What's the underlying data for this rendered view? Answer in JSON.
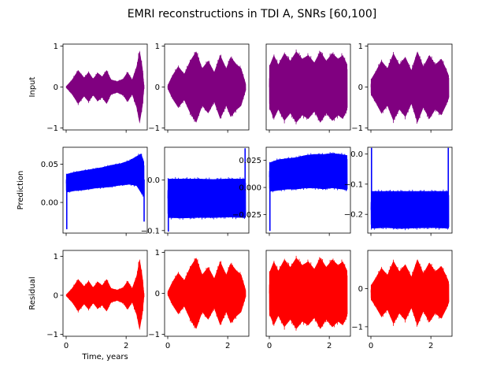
{
  "figure": {
    "title": "EMRI reconstructions in TDI A, SNRs [60,100]"
  },
  "chart_data": [
    {
      "type": "area",
      "row": 0,
      "col": 0,
      "ylabel": "Input",
      "xlabel": "",
      "color": "#800080",
      "x_range": [
        0,
        2.6
      ],
      "ylim": [
        -1.05,
        1.05
      ],
      "x_ticks": [
        0,
        2
      ],
      "x_tick_labels": false,
      "y_ticks": [
        -1,
        0,
        1
      ],
      "y_tick_labels": [
        "−1",
        "0",
        "1"
      ],
      "envelope_x": [
        0,
        0.2,
        0.4,
        0.6,
        0.75,
        0.9,
        1.05,
        1.2,
        1.35,
        1.5,
        1.7,
        1.9,
        2.05,
        2.2,
        2.35,
        2.45,
        2.55,
        2.6
      ],
      "envelope_upper": [
        0.02,
        0.2,
        0.45,
        0.25,
        0.4,
        0.22,
        0.38,
        0.28,
        0.45,
        0.2,
        0.15,
        0.22,
        0.4,
        0.2,
        0.55,
        0.98,
        0.5,
        0.05
      ],
      "envelope_lower": [
        -0.02,
        -0.2,
        -0.45,
        -0.25,
        -0.4,
        -0.22,
        -0.38,
        -0.28,
        -0.45,
        -0.2,
        -0.15,
        -0.22,
        -0.4,
        -0.2,
        -0.55,
        -0.98,
        -0.5,
        -0.05
      ]
    },
    {
      "type": "area",
      "row": 0,
      "col": 1,
      "ylabel": "",
      "xlabel": "",
      "color": "#800080",
      "x_range": [
        0,
        2.6
      ],
      "ylim": [
        -1.05,
        1.05
      ],
      "x_ticks": [
        0,
        2
      ],
      "x_tick_labels": false,
      "y_ticks": [
        -1,
        0,
        1
      ],
      "y_tick_labels": [
        "−1",
        "0",
        "1"
      ],
      "envelope_x": [
        0,
        0.15,
        0.35,
        0.55,
        0.75,
        0.95,
        1.15,
        1.35,
        1.55,
        1.75,
        1.95,
        2.1,
        2.3,
        2.45,
        2.6
      ],
      "envelope_upper": [
        0.05,
        0.3,
        0.55,
        0.35,
        0.7,
        0.95,
        0.5,
        0.7,
        0.4,
        0.85,
        0.5,
        0.8,
        0.6,
        0.5,
        0.1
      ],
      "envelope_lower": [
        -0.05,
        -0.3,
        -0.55,
        -0.35,
        -0.7,
        -0.95,
        -0.5,
        -0.7,
        -0.4,
        -0.85,
        -0.5,
        -0.8,
        -0.6,
        -0.5,
        -0.1
      ]
    },
    {
      "type": "area",
      "row": 0,
      "col": 2,
      "ylabel": "",
      "xlabel": "",
      "color": "#800080",
      "x_range": [
        0,
        2.6
      ],
      "ylim": [
        -1.05,
        1.05
      ],
      "x_ticks": [
        0,
        2
      ],
      "x_tick_labels": false,
      "y_ticks": [],
      "y_tick_labels": [],
      "envelope_x": [
        0,
        0.15,
        0.3,
        0.5,
        0.7,
        0.9,
        1.1,
        1.3,
        1.5,
        1.7,
        1.9,
        2.1,
        2.3,
        2.45,
        2.6
      ],
      "envelope_upper": [
        0.55,
        0.85,
        0.6,
        0.9,
        0.7,
        0.95,
        0.75,
        0.85,
        0.65,
        0.95,
        0.7,
        0.9,
        0.75,
        0.85,
        0.6
      ],
      "envelope_lower": [
        -0.55,
        -0.85,
        -0.6,
        -0.9,
        -0.7,
        -0.95,
        -0.75,
        -0.85,
        -0.65,
        -0.95,
        -0.7,
        -0.9,
        -0.75,
        -0.85,
        -0.6
      ]
    },
    {
      "type": "area",
      "row": 0,
      "col": 3,
      "ylabel": "",
      "xlabel": "",
      "color": "#800080",
      "x_range": [
        0,
        2.6
      ],
      "ylim": [
        -1.05,
        1.05
      ],
      "x_ticks": [
        0,
        2
      ],
      "x_tick_labels": false,
      "y_ticks": [
        -1,
        0,
        1
      ],
      "y_tick_labels": [
        "−1",
        "0",
        "1"
      ],
      "envelope_x": [
        0,
        0.15,
        0.35,
        0.55,
        0.75,
        0.95,
        1.15,
        1.35,
        1.55,
        1.75,
        1.95,
        2.15,
        2.35,
        2.5,
        2.6
      ],
      "envelope_upper": [
        0.2,
        0.4,
        0.7,
        0.5,
        0.9,
        0.6,
        0.8,
        0.45,
        0.95,
        0.55,
        0.85,
        0.6,
        0.75,
        0.5,
        0.3
      ],
      "envelope_lower": [
        -0.2,
        -0.4,
        -0.7,
        -0.5,
        -0.9,
        -0.6,
        -0.8,
        -0.45,
        -0.95,
        -0.55,
        -0.85,
        -0.6,
        -0.75,
        -0.5,
        -0.3
      ]
    },
    {
      "type": "area",
      "row": 1,
      "col": 0,
      "ylabel": "Prediction",
      "xlabel": "",
      "color": "#0000ff",
      "x_range": [
        0,
        2.6
      ],
      "ylim": [
        -0.04,
        0.072
      ],
      "x_ticks": [
        0,
        2
      ],
      "x_tick_labels": false,
      "y_ticks": [
        0,
        0.05
      ],
      "y_tick_labels": [
        "0.00",
        "0.05"
      ],
      "envelope_x": [
        0,
        0.3,
        0.6,
        0.9,
        1.2,
        1.5,
        1.8,
        2.1,
        2.35,
        2.5,
        2.6
      ],
      "envelope_upper": [
        0.038,
        0.041,
        0.043,
        0.045,
        0.047,
        0.05,
        0.052,
        0.056,
        0.062,
        0.066,
        0.055
      ],
      "envelope_lower": [
        0.012,
        0.014,
        0.015,
        0.017,
        0.018,
        0.019,
        0.021,
        0.022,
        0.02,
        0.01,
        0.005
      ],
      "spikes": [
        {
          "x": 0.02,
          "y": -0.035
        },
        {
          "x": 2.6,
          "y": -0.025
        }
      ]
    },
    {
      "type": "area",
      "row": 1,
      "col": 1,
      "ylabel": "",
      "xlabel": "",
      "color": "#0000ff",
      "x_range": [
        0,
        2.6
      ],
      "ylim": [
        -0.105,
        0.065
      ],
      "x_ticks": [
        0,
        2
      ],
      "x_tick_labels": false,
      "y_ticks": [
        -0.1,
        0
      ],
      "y_tick_labels": [
        "−0.1",
        "0.0"
      ],
      "envelope_x": [
        0,
        0.5,
        1.0,
        1.5,
        2.0,
        2.6
      ],
      "envelope_upper": [
        0.006,
        0.006,
        0.006,
        0.005,
        0.006,
        0.006
      ],
      "envelope_lower": [
        -0.078,
        -0.079,
        -0.078,
        -0.078,
        -0.077,
        -0.078
      ],
      "spikes": [
        {
          "x": 0.02,
          "y": -0.102
        },
        {
          "x": 2.58,
          "y": 0.063
        }
      ]
    },
    {
      "type": "area",
      "row": 1,
      "col": 2,
      "ylabel": "",
      "xlabel": "",
      "color": "#0000ff",
      "x_range": [
        0,
        2.6
      ],
      "ylim": [
        -0.042,
        0.037
      ],
      "x_ticks": [
        0,
        2
      ],
      "x_tick_labels": false,
      "y_ticks": [
        -0.025,
        0,
        0.025
      ],
      "y_tick_labels": [
        "−0.025",
        "0.000",
        "0.025"
      ],
      "envelope_x": [
        0,
        0.3,
        0.6,
        0.9,
        1.2,
        1.5,
        1.8,
        2.1,
        2.4,
        2.6
      ],
      "envelope_upper": [
        0.024,
        0.027,
        0.028,
        0.029,
        0.031,
        0.032,
        0.032,
        0.033,
        0.032,
        0.031
      ],
      "envelope_lower": [
        -0.005,
        -0.004,
        -0.003,
        -0.003,
        -0.002,
        -0.002,
        -0.003,
        -0.002,
        -0.003,
        -0.004
      ],
      "spikes": [
        {
          "x": 0.02,
          "y": -0.04
        }
      ]
    },
    {
      "type": "area",
      "row": 1,
      "col": 3,
      "ylabel": "",
      "xlabel": "",
      "color": "#0000ff",
      "x_range": [
        0,
        2.6
      ],
      "ylim": [
        -0.262,
        0.022
      ],
      "x_ticks": [
        0,
        2
      ],
      "x_tick_labels": false,
      "y_ticks": [
        -0.2,
        -0.1,
        0
      ],
      "y_tick_labels": [
        "−0.2",
        "−0.1",
        "0.0"
      ],
      "envelope_x": [
        0,
        0.5,
        1.0,
        1.5,
        2.0,
        2.6
      ],
      "envelope_upper": [
        -0.118,
        -0.118,
        -0.118,
        -0.118,
        -0.118,
        -0.118
      ],
      "envelope_lower": [
        -0.252,
        -0.25,
        -0.253,
        -0.251,
        -0.25,
        -0.252
      ],
      "spikes": [
        {
          "x": 0.02,
          "y": 0.02
        },
        {
          "x": 2.58,
          "y": 0.02
        }
      ]
    },
    {
      "type": "area",
      "row": 2,
      "col": 0,
      "ylabel": "Residual",
      "xlabel": "Time, years",
      "color": "#ff0000",
      "x_range": [
        0,
        2.6
      ],
      "ylim": [
        -1.05,
        1.15
      ],
      "x_ticks": [
        0,
        2
      ],
      "x_tick_labels": true,
      "x_tick_text": [
        "0",
        "2"
      ],
      "y_ticks": [
        -1,
        0,
        1
      ],
      "y_tick_labels": [
        "−1",
        "0",
        "1"
      ],
      "envelope_x": [
        0,
        0.2,
        0.4,
        0.6,
        0.75,
        0.9,
        1.05,
        1.2,
        1.35,
        1.5,
        1.7,
        1.9,
        2.05,
        2.2,
        2.35,
        2.45,
        2.55,
        2.6
      ],
      "envelope_upper": [
        0.02,
        0.2,
        0.45,
        0.25,
        0.4,
        0.22,
        0.38,
        0.28,
        0.45,
        0.2,
        0.15,
        0.22,
        0.4,
        0.2,
        0.55,
        1.02,
        0.5,
        0.05
      ],
      "envelope_lower": [
        -0.02,
        -0.2,
        -0.45,
        -0.25,
        -0.4,
        -0.22,
        -0.38,
        -0.28,
        -0.45,
        -0.2,
        -0.15,
        -0.22,
        -0.4,
        -0.2,
        -0.55,
        -0.98,
        -0.5,
        -0.05
      ]
    },
    {
      "type": "area",
      "row": 2,
      "col": 1,
      "ylabel": "",
      "xlabel": "",
      "color": "#ff0000",
      "x_range": [
        0,
        2.6
      ],
      "ylim": [
        -1.05,
        1.05
      ],
      "x_ticks": [
        0,
        2
      ],
      "x_tick_labels": true,
      "x_tick_text": [
        "0",
        "2"
      ],
      "y_ticks": [
        -1,
        0,
        1
      ],
      "y_tick_labels": [
        "−1",
        "0",
        "1"
      ],
      "envelope_x": [
        0,
        0.15,
        0.35,
        0.55,
        0.75,
        0.95,
        1.15,
        1.35,
        1.55,
        1.75,
        1.95,
        2.1,
        2.3,
        2.45,
        2.6
      ],
      "envelope_upper": [
        0.05,
        0.3,
        0.55,
        0.35,
        0.7,
        0.95,
        0.5,
        0.7,
        0.4,
        0.85,
        0.5,
        0.8,
        0.6,
        0.5,
        0.1
      ],
      "envelope_lower": [
        -0.05,
        -0.3,
        -0.55,
        -0.35,
        -0.7,
        -0.95,
        -0.5,
        -0.7,
        -0.4,
        -0.85,
        -0.5,
        -0.8,
        -0.6,
        -0.5,
        -0.1
      ]
    },
    {
      "type": "area",
      "row": 2,
      "col": 2,
      "ylabel": "",
      "xlabel": "",
      "color": "#ff0000",
      "x_range": [
        0,
        2.6
      ],
      "ylim": [
        -1.05,
        1.05
      ],
      "x_ticks": [
        0,
        2
      ],
      "x_tick_labels": true,
      "x_tick_text": [
        "0",
        "2"
      ],
      "y_ticks": [],
      "y_tick_labels": [],
      "envelope_x": [
        0,
        0.15,
        0.3,
        0.5,
        0.7,
        0.9,
        1.1,
        1.3,
        1.5,
        1.7,
        1.9,
        2.1,
        2.3,
        2.45,
        2.6
      ],
      "envelope_upper": [
        0.55,
        0.85,
        0.6,
        0.9,
        0.7,
        0.95,
        0.75,
        0.85,
        0.65,
        0.95,
        0.7,
        0.9,
        0.75,
        0.85,
        0.6
      ],
      "envelope_lower": [
        -0.55,
        -0.85,
        -0.6,
        -0.9,
        -0.7,
        -0.95,
        -0.75,
        -0.85,
        -0.65,
        -0.95,
        -0.7,
        -0.9,
        -0.75,
        -0.85,
        -0.6
      ]
    },
    {
      "type": "area",
      "row": 2,
      "col": 3,
      "ylabel": "",
      "xlabel": "",
      "color": "#ff0000",
      "x_range": [
        0,
        2.6
      ],
      "ylim": [
        -1.25,
        1.0
      ],
      "x_ticks": [
        0,
        2
      ],
      "x_tick_labels": true,
      "x_tick_text": [
        "0",
        "2"
      ],
      "y_ticks": [
        -1,
        0
      ],
      "y_tick_labels": [
        "−1",
        "0"
      ],
      "envelope_x": [
        0,
        0.15,
        0.35,
        0.55,
        0.75,
        0.95,
        1.15,
        1.35,
        1.55,
        1.75,
        1.95,
        2.15,
        2.35,
        2.5,
        2.6
      ],
      "envelope_upper": [
        0.1,
        0.3,
        0.6,
        0.4,
        0.8,
        0.5,
        0.7,
        0.35,
        0.85,
        0.45,
        0.75,
        0.5,
        0.65,
        0.4,
        0.2
      ],
      "envelope_lower": [
        -0.3,
        -0.5,
        -0.8,
        -0.6,
        -1.0,
        -0.7,
        -0.9,
        -0.55,
        -1.05,
        -0.65,
        -0.95,
        -0.7,
        -0.85,
        -0.6,
        -0.4
      ]
    }
  ]
}
